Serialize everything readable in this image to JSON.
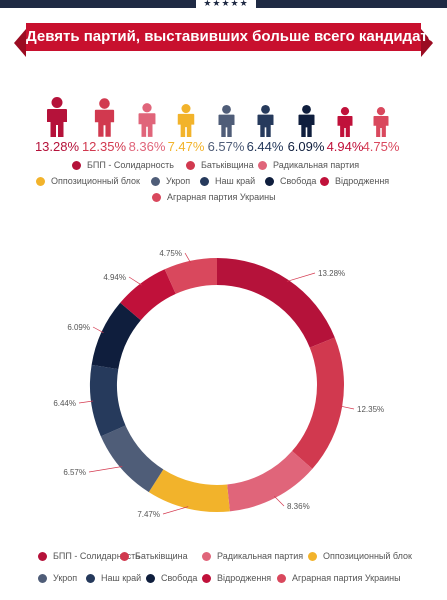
{
  "header": {
    "stars": "★★★★★",
    "title": "Девять партий, выставивших больше всего кандидатов"
  },
  "colors": {
    "bpp": "#b5123a",
    "batkivshchyna": "#d1394f",
    "radical": "#e0657a",
    "opposition": "#f2b32b",
    "ukrop": "#4f5d78",
    "nash_krai": "#263a5c",
    "svoboda": "#0f1e3d",
    "vidrodzhennia": "#c0113a",
    "agrarian": "#d9485d"
  },
  "chart_data": {
    "type": "pie",
    "categories": [
      "БПП - Солидарность",
      "Батьківщина",
      "Радикальная партия",
      "Оппозиционный блок",
      "Укроп",
      "Наш край",
      "Свобода",
      "Відродження",
      "Аграрная партия Украины"
    ],
    "values": [
      13.28,
      12.35,
      8.36,
      7.47,
      6.57,
      6.44,
      6.09,
      4.94,
      4.75
    ],
    "labels": [
      "13.28%",
      "12.35%",
      "8.36%",
      "7.47%",
      "6.57%",
      "6.44%",
      "6.09%",
      "4.94%",
      "4.75%"
    ],
    "colors": [
      "#b5123a",
      "#d1394f",
      "#e0657a",
      "#f2b32b",
      "#4f5d78",
      "#263a5c",
      "#0f1e3d",
      "#c0113a",
      "#d9485d"
    ],
    "donut": true,
    "legend_positions": [
      "top",
      "bottom"
    ]
  },
  "people_row": {
    "percent_labels": [
      "13.28%",
      "12.35%",
      "8.36%",
      "7.47%",
      "6.57%",
      "6.44%",
      "6.09%",
      "4.94%",
      "4.75%"
    ],
    "icon": "person-icon"
  }
}
